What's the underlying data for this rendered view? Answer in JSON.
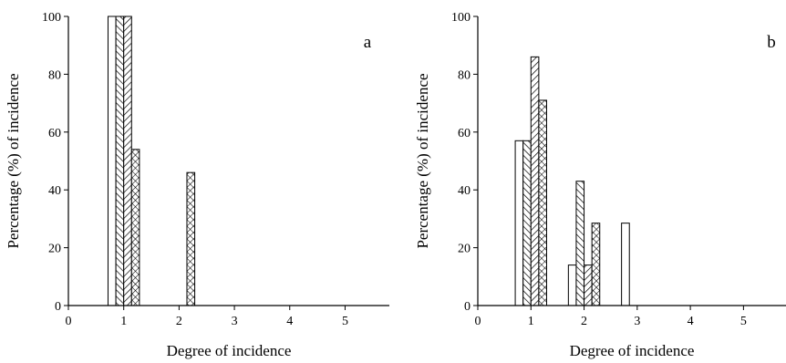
{
  "chart_data": [
    {
      "type": "bar",
      "panel_label": "a",
      "xlabel": "Degree of incidence",
      "ylabel": "Percentage (%) of incidence",
      "xlim": [
        0,
        5.8
      ],
      "ylim": [
        0,
        100
      ],
      "xticks": [
        "0",
        "1",
        "2",
        "3",
        "4",
        "5"
      ],
      "yticks": [
        "0",
        "20",
        "40",
        "60",
        "80",
        "100"
      ],
      "grid": false,
      "legend": "none",
      "x": [
        1,
        2,
        3,
        4,
        5
      ],
      "series": [
        {
          "pattern": "blank",
          "values": [
            100,
            0,
            0,
            0,
            0
          ]
        },
        {
          "pattern": "diagonal-left",
          "values": [
            100,
            0,
            0,
            0,
            0
          ]
        },
        {
          "pattern": "diagonal-right",
          "values": [
            100,
            0,
            0,
            0,
            0
          ]
        },
        {
          "pattern": "crosshatch",
          "values": [
            54,
            46,
            0,
            0,
            0
          ]
        }
      ]
    },
    {
      "type": "bar",
      "panel_label": "b",
      "xlabel": "Degree of incidence",
      "ylabel": "Percentage (%) of incidence",
      "xlim": [
        0,
        5.8
      ],
      "ylim": [
        0,
        100
      ],
      "xticks": [
        "0",
        "1",
        "2",
        "3",
        "4",
        "5"
      ],
      "yticks": [
        "0",
        "20",
        "40",
        "60",
        "80",
        "100"
      ],
      "grid": false,
      "legend": "none",
      "x": [
        1,
        2,
        3,
        4,
        5
      ],
      "series": [
        {
          "pattern": "blank",
          "values": [
            57,
            14,
            28.5,
            0,
            0
          ]
        },
        {
          "pattern": "diagonal-left",
          "values": [
            57,
            43,
            0,
            0,
            0
          ]
        },
        {
          "pattern": "diagonal-right",
          "values": [
            86,
            14,
            0,
            0,
            0
          ]
        },
        {
          "pattern": "crosshatch",
          "values": [
            71,
            28.5,
            0,
            0,
            0
          ]
        }
      ]
    }
  ]
}
